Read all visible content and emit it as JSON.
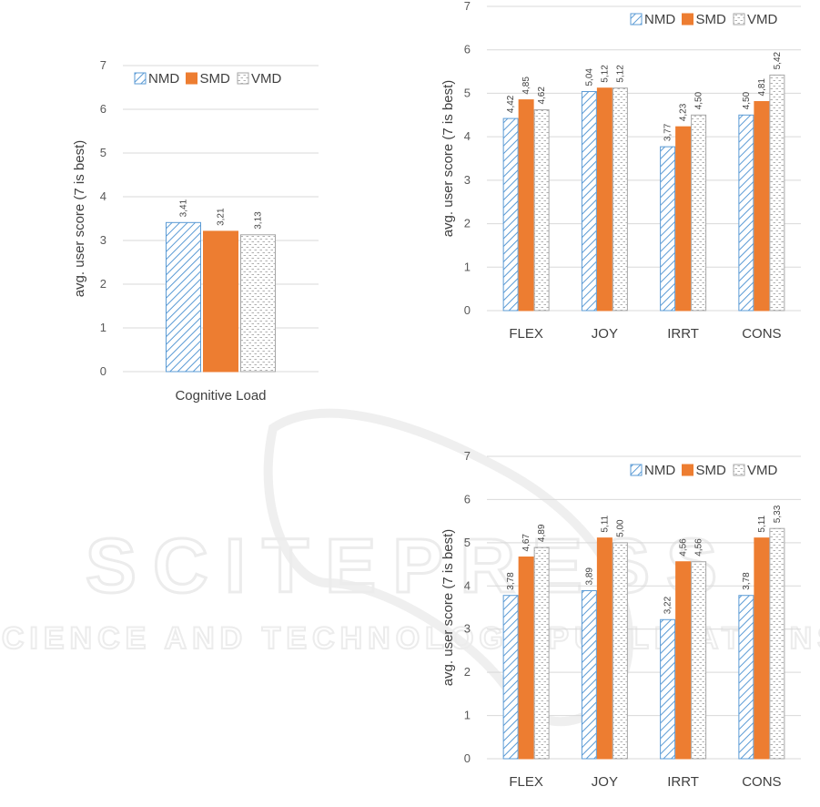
{
  "colors": {
    "NMD": "#5b9bd5",
    "SMD": "#ed7d31",
    "VMD": "#a6a6a6",
    "grid": "#d9d9d9",
    "text": "#404040"
  },
  "chart_data": [
    {
      "type": "bar",
      "categories": [
        "Cognitive Load"
      ],
      "series": [
        {
          "name": "NMD",
          "values": [
            3.41
          ],
          "labels": [
            "3,41"
          ]
        },
        {
          "name": "SMD",
          "values": [
            3.21
          ],
          "labels": [
            "3,21"
          ]
        },
        {
          "name": "VMD",
          "values": [
            3.13
          ],
          "labels": [
            "3,13"
          ]
        }
      ],
      "ylabel": "avg. user score (7 is best)",
      "ylim": [
        0,
        7
      ],
      "yticks": [
        "0",
        "1",
        "2",
        "3",
        "4",
        "5",
        "6",
        "7"
      ],
      "grid": true,
      "legend": "top"
    },
    {
      "type": "bar",
      "categories": [
        "FLEX",
        "JOY",
        "IRRT",
        "CONS"
      ],
      "series": [
        {
          "name": "NMD",
          "values": [
            4.42,
            5.04,
            3.77,
            4.5
          ],
          "labels": [
            "4,42",
            "5,04",
            "3,77",
            "4,50"
          ]
        },
        {
          "name": "SMD",
          "values": [
            4.85,
            5.12,
            4.23,
            4.81
          ],
          "labels": [
            "4,85",
            "5,12",
            "4,23",
            "4,81"
          ]
        },
        {
          "name": "VMD",
          "values": [
            4.62,
            5.12,
            4.5,
            5.42
          ],
          "labels": [
            "4,62",
            "5,12",
            "4,50",
            "5,42"
          ]
        }
      ],
      "ylabel": "avg. user score (7 is best)",
      "ylim": [
        0,
        7
      ],
      "yticks": [
        "0",
        "1",
        "2",
        "3",
        "4",
        "5",
        "6",
        "7"
      ],
      "grid": true,
      "legend": "top-right"
    },
    {
      "type": "bar",
      "categories": [
        "FLEX",
        "JOY",
        "IRRT",
        "CONS"
      ],
      "series": [
        {
          "name": "NMD",
          "values": [
            3.78,
            3.89,
            3.22,
            3.78
          ],
          "labels": [
            "3,78",
            "3,89",
            "3,22",
            "3,78"
          ]
        },
        {
          "name": "SMD",
          "values": [
            4.67,
            5.11,
            4.56,
            5.11
          ],
          "labels": [
            "4,67",
            "5,11",
            "4,56",
            "5,11"
          ]
        },
        {
          "name": "VMD",
          "values": [
            4.89,
            5.0,
            4.56,
            5.33
          ],
          "labels": [
            "4,89",
            "5,00",
            "4,56",
            "5,33"
          ]
        }
      ],
      "ylabel": "avg. user score (7 is best)",
      "ylim": [
        0,
        7
      ],
      "yticks": [
        "0",
        "1",
        "2",
        "3",
        "4",
        "5",
        "6",
        "7"
      ],
      "grid": true,
      "legend": "top-right"
    }
  ]
}
